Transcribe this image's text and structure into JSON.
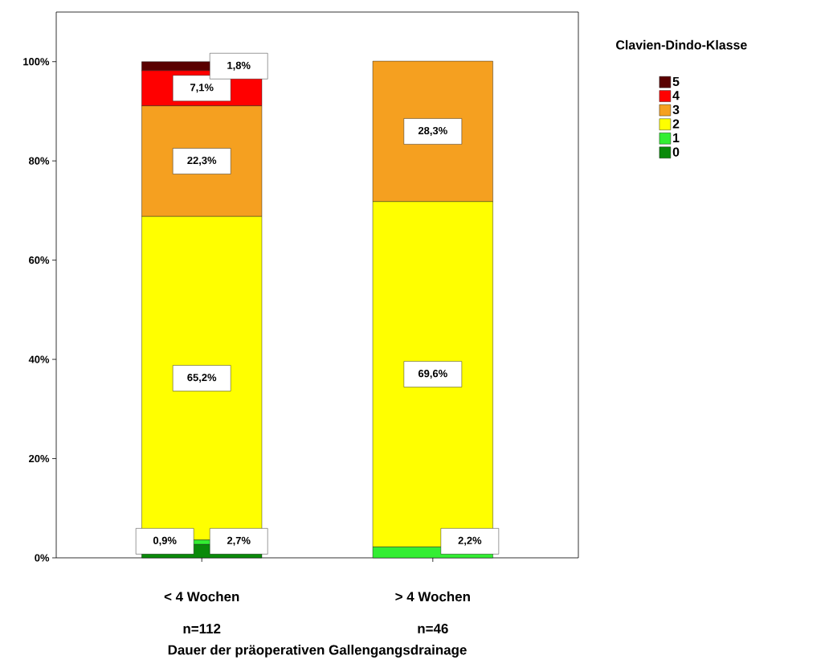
{
  "chart_data": {
    "type": "bar",
    "stacked": true,
    "categories": [
      "< 4 Wochen",
      "> 4 Wochen"
    ],
    "xlabel": "Dauer der präoperativen Gallengangsdrainage",
    "annotations": [
      "n=112",
      "n=46"
    ],
    "legend_title": "Clavien-Dindo-Klasse",
    "series": [
      {
        "name": "0",
        "color": "#0a8a0a",
        "values": [
          2.7,
          0
        ],
        "value_labels": [
          "2,7%",
          null
        ]
      },
      {
        "name": "1",
        "color": "#33ee33",
        "values": [
          0.9,
          2.2
        ],
        "value_labels": [
          "0,9%",
          "2,2%"
        ]
      },
      {
        "name": "2",
        "color": "#ffff00",
        "values": [
          65.2,
          69.6
        ],
        "value_labels": [
          "65,2%",
          "69,6%"
        ]
      },
      {
        "name": "3",
        "color": "#f5a020",
        "values": [
          22.3,
          28.3
        ],
        "value_labels": [
          "22,3%",
          "28,3%"
        ]
      },
      {
        "name": "4",
        "color": "#ff0000",
        "values": [
          7.1,
          0
        ],
        "value_labels": [
          "7,1%",
          null
        ]
      },
      {
        "name": "5",
        "color": "#5a0000",
        "values": [
          1.8,
          0
        ],
        "value_labels": [
          "1,8%",
          null
        ]
      }
    ],
    "ylim": [
      0,
      110
    ],
    "yticks": [
      {
        "value": 0,
        "label": "0%"
      },
      {
        "value": 20,
        "label": "20%"
      },
      {
        "value": 40,
        "label": "40%"
      },
      {
        "value": 60,
        "label": "60%"
      },
      {
        "value": 80,
        "label": "80%"
      },
      {
        "value": 100,
        "label": "100%"
      }
    ],
    "grid": false,
    "legend": "top right"
  }
}
